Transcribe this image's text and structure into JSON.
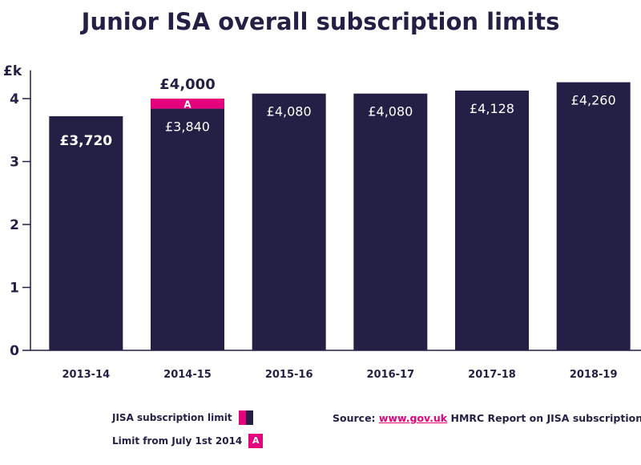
{
  "title": "Junior ISA overall subscription limits",
  "colors": {
    "navy": "#231f45",
    "pink": "#e5007d",
    "axis": "#231f45"
  },
  "chart_data": {
    "type": "bar",
    "ylabel": "£k",
    "ylim": [
      0,
      4.5
    ],
    "yticks": [
      "0",
      "1",
      "2",
      "3",
      "4"
    ],
    "categories": [
      "2013-14",
      "2014-15",
      "2015-16",
      "2016-17",
      "2017-18",
      "2018-19"
    ],
    "series": [
      {
        "name": "JISA subscription limit",
        "values": [
          3.72,
          3.84,
          4.08,
          4.08,
          4.128,
          4.26
        ]
      },
      {
        "name": "Limit from July 1st 2014",
        "values": [
          0,
          0.16,
          0,
          0,
          0,
          0
        ]
      }
    ],
    "data_labels": [
      "£3,720",
      "£3,840",
      "£4,080",
      "£4,080",
      "£4,128",
      "£4,260"
    ],
    "top_label": "£4,000",
    "stack_marker": "A"
  },
  "legend": {
    "item1": "JISA subscription limit",
    "item2": "Limit from July 1st 2014",
    "marker": "A"
  },
  "source": {
    "prefix": "Source:",
    "link": "www.gov.uk",
    "suffix": "HMRC Report on JISA subscriptions"
  }
}
